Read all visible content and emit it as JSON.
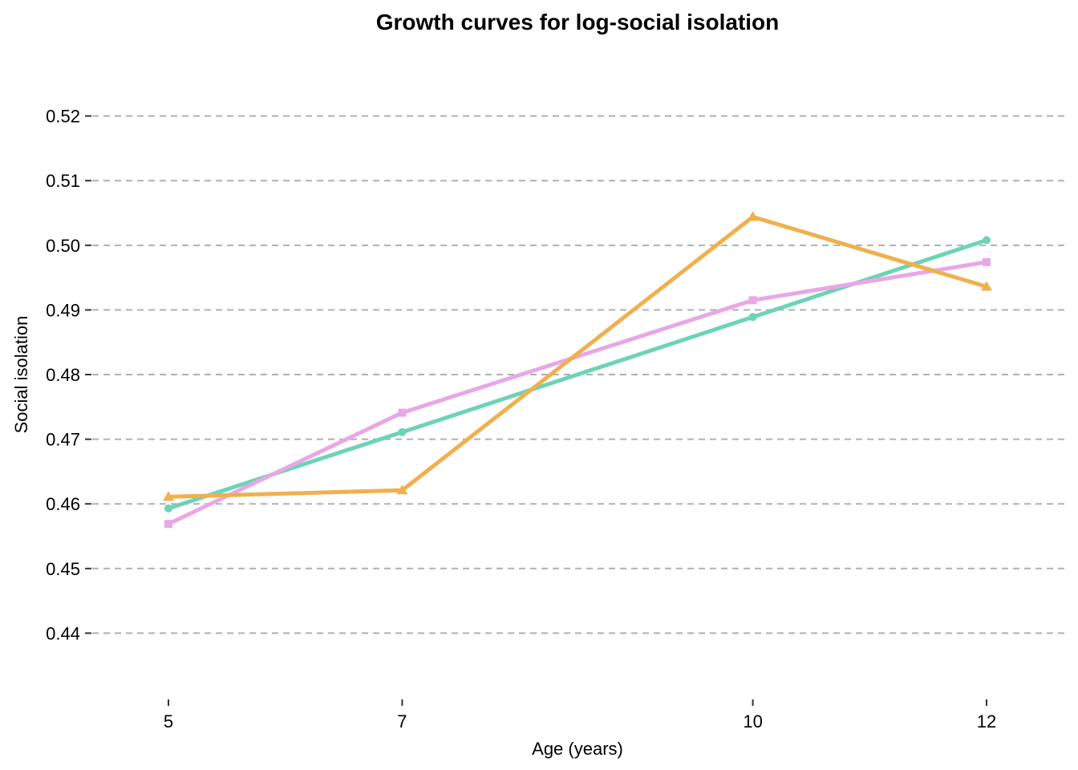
{
  "chart_data": {
    "type": "line",
    "title": "Growth curves for log-social isolation",
    "xlabel": "Age (years)",
    "ylabel": "Social isolation",
    "x": [
      5,
      7,
      10,
      12
    ],
    "x_tick_labels": [
      "5",
      "7",
      "10",
      "12"
    ],
    "xlim": [
      4.3,
      12.7
    ],
    "y_ticks": [
      0.44,
      0.45,
      0.46,
      0.47,
      0.48,
      0.49,
      0.5,
      0.51,
      0.52
    ],
    "y_tick_labels": [
      "0.44",
      "0.45",
      "0.46",
      "0.47",
      "0.48",
      "0.49",
      "0.50",
      "0.51",
      "0.52"
    ],
    "ylim": [
      0.43,
      0.5305
    ],
    "grid": true,
    "legend": "none",
    "series": [
      {
        "color": "#6dd3b6",
        "marker": "circle",
        "values": [
          0.4593,
          0.4711,
          0.4889,
          0.5008
        ]
      },
      {
        "color": "#e8a7e6",
        "marker": "square",
        "values": [
          0.4569,
          0.4741,
          0.4915,
          0.4974
        ]
      },
      {
        "color": "#f0b04e",
        "marker": "triangle",
        "values": [
          0.4611,
          0.4621,
          0.5044,
          0.4936
        ]
      }
    ]
  }
}
